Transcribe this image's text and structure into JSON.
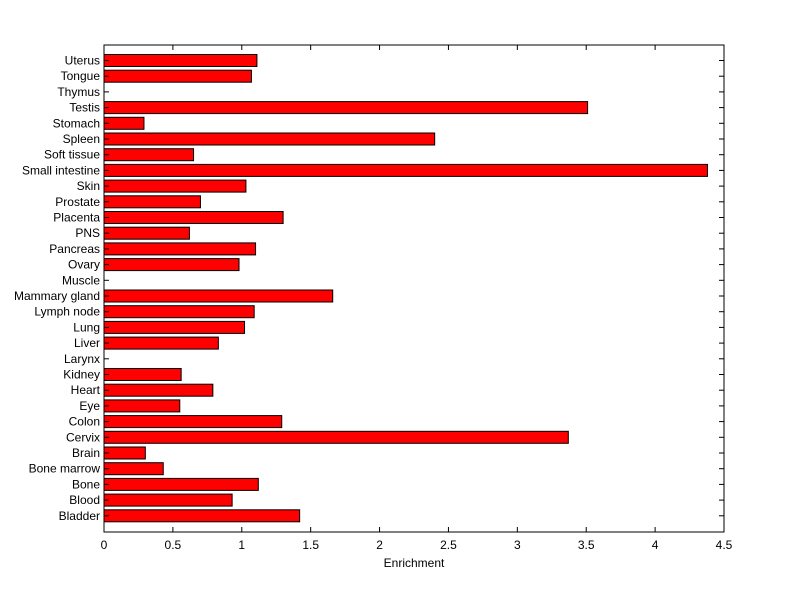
{
  "chart_data": {
    "type": "bar",
    "orientation": "horizontal",
    "xlabel": "Enrichment",
    "ylabel": "",
    "title": "",
    "xlim": [
      0,
      4.5
    ],
    "xticks": [
      0,
      0.5,
      1,
      1.5,
      2,
      2.5,
      3,
      3.5,
      4,
      4.5
    ],
    "xtick_labels": [
      "0",
      "0.5",
      "1",
      "1.5",
      "2",
      "2.5",
      "3",
      "3.5",
      "4",
      "4.5"
    ],
    "grid": false,
    "bar_color": "#ff0000",
    "bar_edge_color": "#000000",
    "categories": [
      "Uterus",
      "Tongue",
      "Thymus",
      "Testis",
      "Stomach",
      "Spleen",
      "Soft tissue",
      "Small intestine",
      "Skin",
      "Prostate",
      "Placenta",
      "PNS",
      "Pancreas",
      "Ovary",
      "Muscle",
      "Mammary gland",
      "Lymph node",
      "Lung",
      "Liver",
      "Larynx",
      "Kidney",
      "Heart",
      "Eye",
      "Colon",
      "Cervix",
      "Brain",
      "Bone marrow",
      "Bone",
      "Blood",
      "Bladder"
    ],
    "values": [
      1.11,
      1.07,
      0.0,
      3.51,
      0.29,
      2.4,
      0.65,
      4.38,
      1.03,
      0.7,
      1.3,
      0.62,
      1.1,
      0.98,
      0.0,
      1.66,
      1.09,
      1.02,
      0.83,
      0.0,
      0.56,
      0.79,
      0.55,
      1.29,
      3.37,
      0.3,
      0.43,
      1.12,
      0.93,
      1.42
    ]
  }
}
